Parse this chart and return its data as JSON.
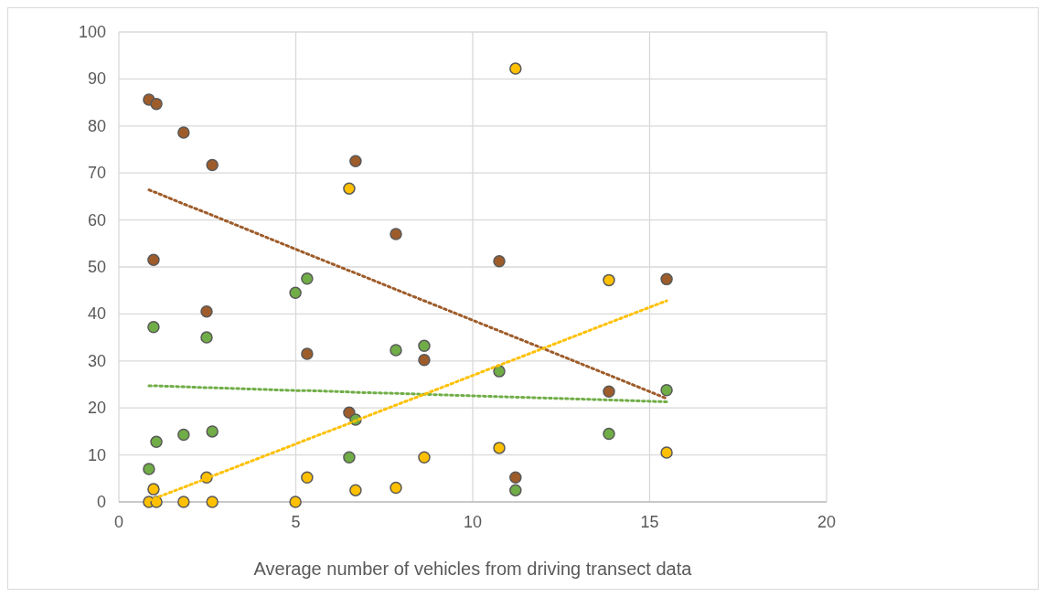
{
  "chart_data": {
    "type": "scatter",
    "xlabel": "Average number of vehicles from driving transect data",
    "x": [
      0.85,
      0.98,
      1.06,
      1.83,
      2.48,
      2.64,
      4.99,
      5.32,
      6.51,
      6.69,
      7.83,
      8.63,
      10.75,
      11.21,
      13.85,
      15.48
    ],
    "series": [
      {
        "color": "#9e5c2a",
        "marker": "circle",
        "values": [
          85.6,
          51.5,
          84.7,
          78.6,
          40.5,
          71.7,
          null,
          31.5,
          19,
          72.5,
          57,
          30.2,
          51.2,
          5.2,
          23.5,
          47.4
        ]
      },
      {
        "color": "#70ad47",
        "marker": "circle",
        "values": [
          7,
          37.2,
          12.8,
          14.3,
          35,
          15,
          44.5,
          47.5,
          9.5,
          17.5,
          32.3,
          33.2,
          27.8,
          2.5,
          14.5,
          23.8
        ]
      },
      {
        "color": "#ffc000",
        "marker": "circle",
        "values": [
          0,
          2.7,
          0,
          0,
          5.2,
          0,
          0,
          5.2,
          66.7,
          2.5,
          3,
          9.5,
          11.5,
          92.2,
          47.2,
          10.5
        ]
      },
      {
        "type": "line",
        "color": "#9e5c2a",
        "line_style": "dotted",
        "values": [
          66.4,
          66.0,
          65.8,
          63.4,
          61.5,
          61.0,
          53.8,
          52.8,
          49.2,
          48.7,
          45.2,
          42.8,
          36.4,
          35.0,
          27.0,
          22.0
        ]
      },
      {
        "type": "line",
        "color": "#70ad47",
        "line_style": "dotted",
        "values": [
          24.7,
          24.7,
          24.7,
          24.5,
          24.3,
          24.3,
          23.7,
          23.7,
          23.4,
          23.3,
          23.1,
          22.9,
          22.4,
          22.3,
          21.7,
          21.3
        ]
      },
      {
        "type": "line",
        "color": "#ffc000",
        "line_style": "dotted",
        "values": [
          0.3,
          0.7,
          0.9,
          3.1,
          5.0,
          5.5,
          12.3,
          13.3,
          16.7,
          17.3,
          20.6,
          22.9,
          29.1,
          30.4,
          38.1,
          42.8
        ]
      }
    ],
    "xlim": [
      0,
      20
    ],
    "xticks": [
      0,
      5,
      10,
      15,
      20
    ],
    "ylim": [
      0,
      100
    ],
    "yticks": [
      0,
      10,
      20,
      30,
      40,
      50,
      60,
      70,
      80,
      90,
      100
    ],
    "grid": true
  }
}
